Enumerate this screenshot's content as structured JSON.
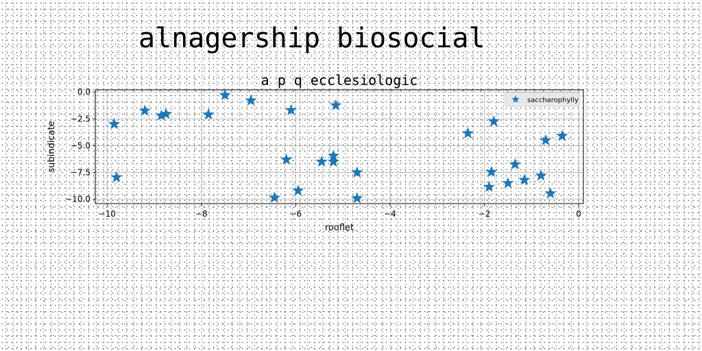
{
  "figure": {
    "suptitle": "alnagership biosocial"
  },
  "chart_data": {
    "type": "scatter",
    "title": "a p q ecclesiologic",
    "xlabel": "rooflet",
    "ylabel": "subindicate",
    "xlim": [
      -10.25,
      0.1
    ],
    "ylim": [
      -10.4,
      0.2
    ],
    "xticks": [
      -10,
      -8,
      -6,
      -4,
      -2,
      0
    ],
    "xtick_labels": [
      "−10",
      "−8",
      "−6",
      "−4",
      "−2",
      "0"
    ],
    "yticks": [
      0,
      -2.5,
      -5,
      -7.5,
      -10
    ],
    "ytick_labels": [
      "0.0",
      "−2.5",
      "−5.0",
      "−7.5",
      "−10.0"
    ],
    "grid": true,
    "legend_position": "top-right",
    "marker": "star",
    "color": "#1f77b4",
    "series": [
      {
        "name": "saccharophylly",
        "points": [
          {
            "x": -9.85,
            "y": -3.0
          },
          {
            "x": -9.8,
            "y": -7.95
          },
          {
            "x": -9.2,
            "y": -1.75
          },
          {
            "x": -8.85,
            "y": -2.2
          },
          {
            "x": -8.75,
            "y": -2.05
          },
          {
            "x": -7.85,
            "y": -2.1
          },
          {
            "x": -7.5,
            "y": -0.3
          },
          {
            "x": -6.95,
            "y": -0.8
          },
          {
            "x": -6.45,
            "y": -9.85
          },
          {
            "x": -6.2,
            "y": -6.3
          },
          {
            "x": -6.1,
            "y": -1.7
          },
          {
            "x": -5.95,
            "y": -9.2
          },
          {
            "x": -5.45,
            "y": -6.5
          },
          {
            "x": -5.2,
            "y": -5.95
          },
          {
            "x": -5.2,
            "y": -6.5
          },
          {
            "x": -5.15,
            "y": -1.25
          },
          {
            "x": -4.7,
            "y": -7.5
          },
          {
            "x": -4.7,
            "y": -9.9
          },
          {
            "x": -2.35,
            "y": -3.85
          },
          {
            "x": -1.9,
            "y": -8.85
          },
          {
            "x": -1.85,
            "y": -7.45
          },
          {
            "x": -1.8,
            "y": -2.75
          },
          {
            "x": -1.5,
            "y": -8.5
          },
          {
            "x": -1.35,
            "y": -6.75
          },
          {
            "x": -1.15,
            "y": -8.2
          },
          {
            "x": -0.8,
            "y": -7.8
          },
          {
            "x": -0.7,
            "y": -4.5
          },
          {
            "x": -0.6,
            "y": -9.45
          },
          {
            "x": -0.35,
            "y": -4.1
          }
        ]
      }
    ]
  }
}
